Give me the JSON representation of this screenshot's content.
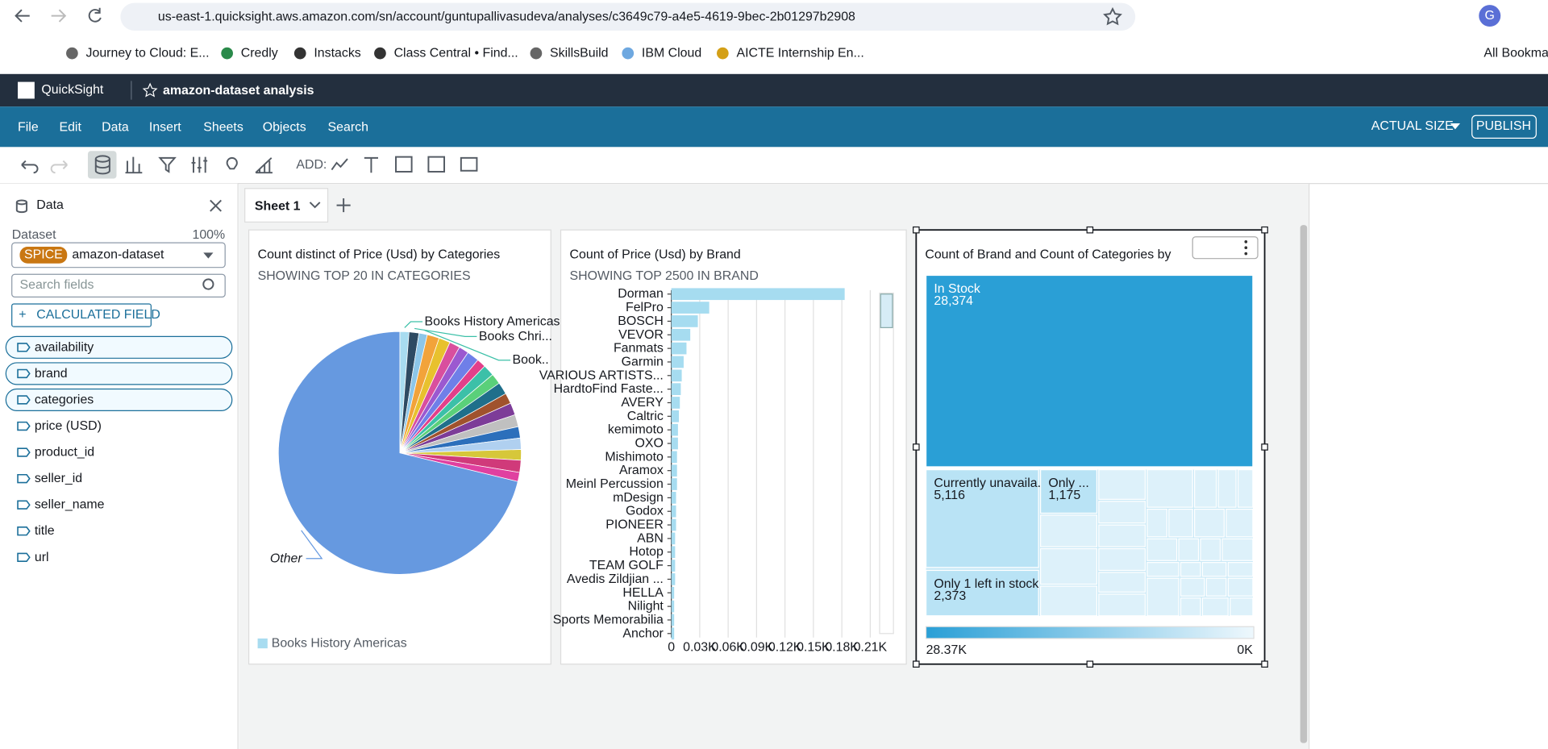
{
  "browser": {
    "url": "us-east-1.quicksight.aws.amazon.com/sn/account/guntupallivasudeva/analyses/c3649c79-a4e5-4619-9bec-2b01297b2908",
    "bookmarks": [
      "Journey to Cloud: E...",
      "Credly",
      "Instacks",
      "Class Central • Find...",
      "SkillsBuild",
      "IBM Cloud",
      "AICTE Internship En..."
    ],
    "all_bookmarks": "All Bookmarks"
  },
  "app": {
    "brand": "QuickSight",
    "analysis_name": "amazon-dataset analysis",
    "menu": [
      "File",
      "Edit",
      "Data",
      "Insert",
      "Sheets",
      "Objects",
      "Search"
    ],
    "actual_size": "ACTUAL SIZE",
    "publish": "PUBLISH",
    "add_label": "ADD:"
  },
  "data_panel": {
    "title": "Data",
    "dataset_label": "Dataset",
    "percent": "100%",
    "spice": "SPICE",
    "dataset": "amazon-dataset",
    "search_placeholder": "Search fields",
    "calculated_field": "CALCULATED FIELD",
    "fields": [
      "availability",
      "brand",
      "categories",
      "price (USD)",
      "product_id",
      "seller_id",
      "seller_name",
      "title",
      "url"
    ]
  },
  "sheet_tab": "Sheet 1",
  "visuals": [
    {
      "type": "pie",
      "title": "Count distinct of Price (Usd) by Categories",
      "subtitle": "SHOWING TOP 20 IN CATEGORIES",
      "categories": [
        "Books History Americas",
        "Books Chri...",
        "Book..",
        null,
        null,
        null,
        null,
        null,
        null,
        null,
        null,
        null,
        null,
        null,
        null,
        null,
        null,
        null,
        null,
        null,
        "Other"
      ],
      "values": [
        1.2,
        1.3,
        1.1,
        1.6,
        1.5,
        1.4,
        1.3,
        1.6,
        1.2,
        1.5,
        1.4,
        1.6,
        1.4,
        1.6,
        1.6,
        1.5,
        1.5,
        1.4,
        1.6,
        1.2,
        70.5
      ],
      "colors": [
        "#a8dcf0",
        "#2e4a62",
        "#8dc6e8",
        "#f2a33a",
        "#e8c12e",
        "#d94f9e",
        "#9b59d0",
        "#6f7fe8",
        "#e23f8a",
        "#3cc0a8",
        "#5ad07a",
        "#1f6f8b",
        "#a0522d",
        "#7d3c98",
        "#c0c0c0",
        "#2c6fbb",
        "#b0d0f0",
        "#d6c73a",
        "#d03a7a",
        "#e040a0",
        "#6699e0"
      ]
    },
    {
      "type": "bar",
      "title": "Count of Price (Usd) by Brand",
      "subtitle": "SHOWING TOP 2500 IN BRAND",
      "color": "#a6dcf0",
      "categories": [
        "Dorman",
        "FelPro",
        "BOSCH",
        "VEVOR",
        "Fanmats",
        "Garmin",
        "VARIOUS ARTISTS...",
        "HardtoFind Faste...",
        "AVERY",
        "Caltric",
        "kemimoto",
        "OXO",
        "Mishimoto",
        "Aramox",
        "Meinl Percussion",
        "mDesign",
        "Godox",
        "PIONEER",
        "ABN",
        "Hotop",
        "TEAM GOLF",
        "Avedis Zildjian ...",
        "HELLA",
        "Nilight",
        "Sports Memorabilia",
        "Anchor"
      ],
      "values": [
        183,
        40,
        28,
        20,
        16,
        13,
        11,
        10,
        9,
        8,
        7,
        7,
        6,
        6,
        6,
        5,
        5,
        5,
        4,
        4,
        4,
        4,
        3,
        3,
        3,
        3
      ],
      "xlim": [
        0,
        222
      ],
      "xticks": [
        0,
        {
          "value": 30,
          "label": "0.03K"
        },
        {
          "value": 60,
          "label": "0.06K"
        },
        {
          "value": 90,
          "label": "0.09K"
        },
        {
          "value": 120,
          "label": "0.12K"
        },
        {
          "value": 150,
          "label": "0.15K"
        },
        {
          "value": 180,
          "label": "0.18K"
        },
        {
          "value": 210,
          "label": "0.21K"
        }
      ],
      "grid": true
    },
    {
      "type": "treemap",
      "title": "Count of Brand and Count of Categories by",
      "categories": [
        "In Stock",
        "Currently unavaila...",
        "Only ...",
        "Only 1 left in stock"
      ],
      "values": [
        28374,
        5116,
        1175,
        2373
      ],
      "value_labels": [
        "28,374",
        "5,116",
        "1,175",
        "2,373"
      ],
      "color_scale": [
        {
          "value": 28374,
          "label": "28.37K"
        },
        {
          "value": 0,
          "label": "0K"
        }
      ],
      "colors": [
        "#2a9fd6",
        "#b9e3f5"
      ]
    }
  ]
}
